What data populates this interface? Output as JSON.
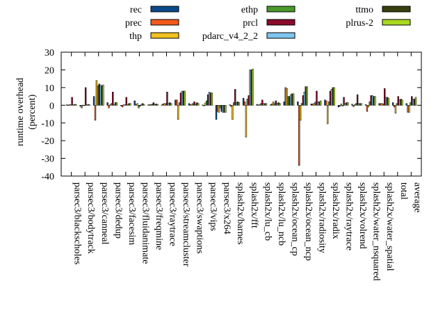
{
  "chart_data": {
    "type": "bar",
    "title": "",
    "xlabel": "",
    "ylabel": "runtime overhead\n(percent)",
    "ylim": [
      -40,
      30
    ],
    "yticks": [
      -40,
      -30,
      -20,
      -10,
      0,
      10,
      20,
      30
    ],
    "grid": false,
    "legend_position": "top",
    "categories": [
      "parsec3/blackscholes",
      "parsec3/bodytrack",
      "parsec3/canneal",
      "parsec3/dedup",
      "parsec3/facesim",
      "parsec3/fluidanimate",
      "parsec3/freqmine",
      "parsec3/raytrace",
      "parsec3/streamcluster",
      "parsec3/swaptions",
      "parsec3/vips",
      "parsec3/x264",
      "splash2x/barnes",
      "splash2x/fft",
      "splash2x/lu_cb",
      "splash2x/lu_ncb",
      "splash2x/ocean_cp",
      "splash2x/ocean_ncp",
      "splash2x/radiosity",
      "splash2x/radix",
      "splash2x/raytrace",
      "splash2x/volrend",
      "splash2x/water_nsquared",
      "splash2x/water_spatial",
      "total",
      "average"
    ],
    "series": [
      {
        "name": "rec",
        "color": "#0b4a8a",
        "values": [
          0.3,
          -0.5,
          5.0,
          1.5,
          -0.3,
          2.5,
          0.2,
          0.2,
          3.0,
          1.0,
          0.2,
          -8.0,
          0.3,
          4.0,
          0.5,
          0.3,
          2.0,
          2.0,
          0.8,
          3.0,
          -1.0,
          0.6,
          0.4,
          1.0,
          1.5,
          1.0
        ]
      },
      {
        "name": "prec",
        "color": "#f25a1c",
        "values": [
          0.1,
          -1.5,
          -8.5,
          -1.5,
          -1.0,
          0.5,
          0.4,
          0.8,
          3.0,
          0.4,
          -0.4,
          -3.5,
          -0.8,
          2.0,
          0.2,
          0.8,
          10.0,
          -34.0,
          0.8,
          2.5,
          -0.5,
          -0.8,
          -3.5,
          1.0,
          -1.0,
          -4.0
        ]
      },
      {
        "name": "thp",
        "color": "#f0c020",
        "values": [
          0.4,
          0.1,
          14.0,
          0.3,
          0.3,
          1.0,
          0.4,
          1.0,
          -8.0,
          0.6,
          1.3,
          -4.0,
          -8.0,
          -18.0,
          0.4,
          2.0,
          9.5,
          -8.5,
          1.0,
          -10.5,
          0.8,
          0.4,
          -1.0,
          1.0,
          -4.5,
          -4.0
        ]
      },
      {
        "name": "ethp",
        "color": "#4a9a2a",
        "values": [
          0.3,
          -0.2,
          11.0,
          1.0,
          0.3,
          -1.5,
          0.7,
          1.0,
          1.5,
          1.0,
          2.5,
          -1.5,
          1.5,
          3.5,
          1.0,
          1.0,
          5.0,
          1.0,
          1.8,
          2.0,
          -0.5,
          1.0,
          2.0,
          0.8,
          1.0,
          1.5
        ]
      },
      {
        "name": "prcl",
        "color": "#8a0a2a",
        "values": [
          4.5,
          10.0,
          12.0,
          7.5,
          4.5,
          -0.5,
          1.5,
          7.5,
          7.0,
          2.0,
          6.0,
          -3.5,
          9.0,
          5.5,
          3.0,
          2.5,
          5.0,
          5.5,
          8.0,
          8.0,
          4.5,
          6.0,
          5.5,
          9.5,
          5.0,
          5.0
        ]
      },
      {
        "name": "pdarc_v4_2_2",
        "color": "#7fc4f0",
        "values": [
          0.3,
          0.2,
          11.5,
          0.3,
          0.3,
          0.5,
          0.5,
          1.0,
          8.0,
          0.8,
          7.5,
          -4.0,
          1.5,
          20.0,
          1.0,
          1.2,
          6.0,
          7.5,
          2.0,
          9.0,
          1.0,
          1.0,
          5.5,
          4.5,
          3.0,
          3.5
        ]
      },
      {
        "name": "ttmo",
        "color": "#37400d",
        "values": [
          0.5,
          0.5,
          11.0,
          1.5,
          1.0,
          1.0,
          0.8,
          1.5,
          8.0,
          1.5,
          7.0,
          -4.0,
          2.0,
          20.0,
          1.0,
          1.5,
          6.5,
          10.5,
          2.0,
          10.0,
          1.5,
          1.0,
          5.0,
          4.5,
          3.5,
          3.5
        ]
      },
      {
        "name": "plrus-2",
        "color": "#a8d820",
        "values": [
          0.5,
          0.2,
          11.5,
          1.5,
          1.0,
          0.5,
          0.5,
          1.0,
          8.0,
          1.0,
          7.0,
          -4.0,
          1.5,
          20.5,
          1.0,
          1.0,
          6.5,
          10.5,
          2.5,
          10.0,
          1.5,
          1.0,
          5.0,
          4.0,
          3.0,
          4.5
        ]
      }
    ]
  }
}
